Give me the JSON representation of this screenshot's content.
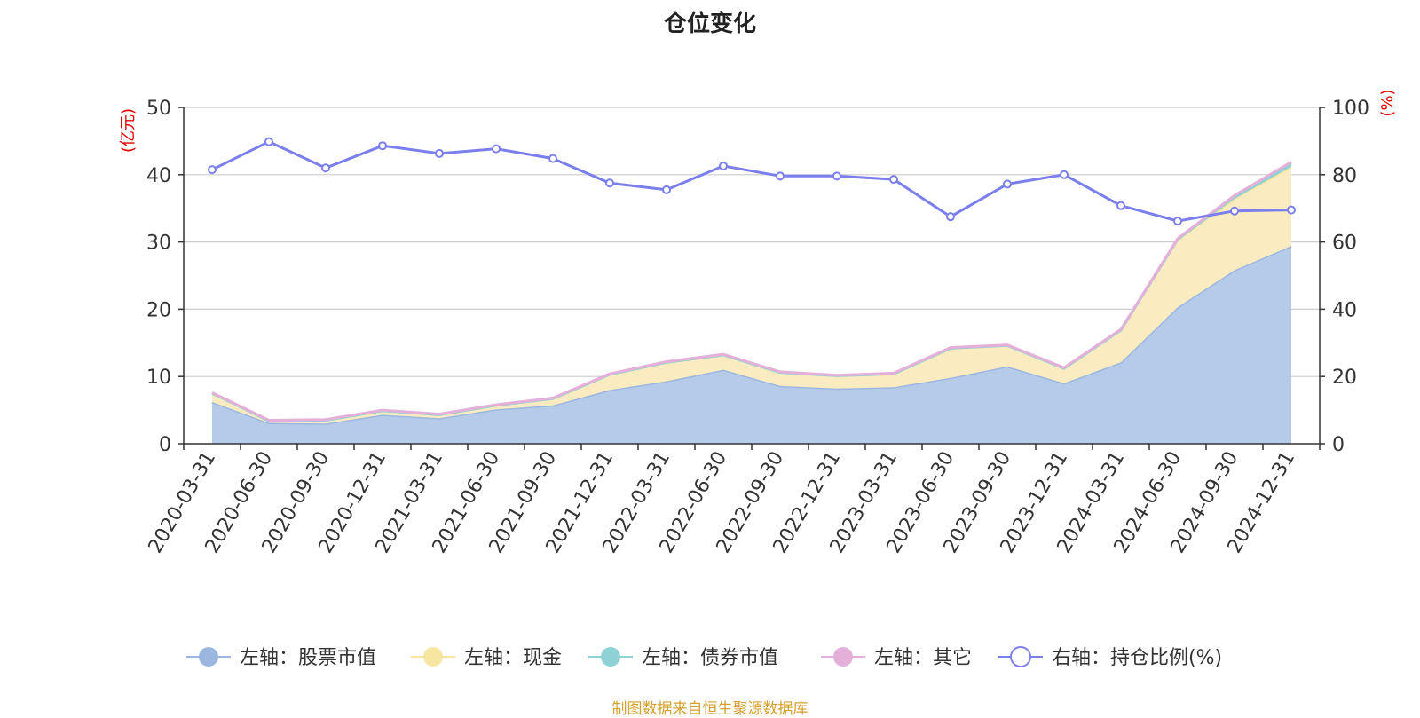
{
  "chart_data": {
    "type": "area",
    "title": "仓位变化",
    "source_note": "制图数据来自恒生聚源数据库",
    "y_left": {
      "unit_label": "(亿元)",
      "ylim": [
        0,
        50
      ],
      "ticks": [
        0,
        10,
        20,
        30,
        40,
        50
      ]
    },
    "y_right": {
      "unit_label": "(%)",
      "ylim": [
        0,
        100
      ],
      "ticks": [
        0,
        20,
        40,
        60,
        80,
        100
      ]
    },
    "x": [
      "2020-03-31",
      "2020-06-30",
      "2020-09-30",
      "2020-12-31",
      "2021-03-31",
      "2021-06-30",
      "2021-09-30",
      "2021-12-31",
      "2022-03-31",
      "2022-06-30",
      "2022-09-30",
      "2022-12-31",
      "2023-03-31",
      "2023-06-30",
      "2023-09-30",
      "2023-12-31",
      "2024-03-31",
      "2024-06-30",
      "2024-09-30",
      "2024-12-31"
    ],
    "grid": true,
    "legend_position": "bottom",
    "series": [
      {
        "name": "左轴：股票市值",
        "axis": "left",
        "color": "#9bb7e0",
        "fill": "#b6cbea",
        "values": [
          6.2,
          3.1,
          3.0,
          4.3,
          3.8,
          5.1,
          5.7,
          8.0,
          9.3,
          11.0,
          8.6,
          8.2,
          8.4,
          9.8,
          11.5,
          9.0,
          12.1,
          20.3,
          25.8,
          29.4
        ]
      },
      {
        "name": "左轴：现金",
        "axis": "left",
        "color": "#f7e6a2",
        "fill": "#faecc0",
        "values": [
          1.3,
          0.3,
          0.5,
          0.6,
          0.5,
          0.6,
          1.0,
          2.3,
          2.8,
          2.2,
          2.0,
          1.9,
          2.0,
          4.4,
          3.1,
          2.2,
          4.8,
          10.1,
          10.6,
          11.8
        ]
      },
      {
        "name": "左轴：债券市值",
        "axis": "left",
        "color": "#8fd1d4",
        "fill": "#8fd1d4",
        "values": [
          0,
          0,
          0,
          0,
          0,
          0,
          0,
          0,
          0,
          0,
          0,
          0,
          0,
          0,
          0,
          0,
          0,
          0,
          0.3,
          0.5
        ]
      },
      {
        "name": "左轴：其它",
        "axis": "left",
        "color": "#e4b0da",
        "fill": "#e4b0da",
        "values": [
          0.1,
          0.1,
          0.1,
          0.1,
          0.1,
          0.1,
          0.1,
          0.1,
          0.1,
          0.1,
          0.1,
          0.1,
          0.1,
          0.1,
          0.1,
          0.1,
          0.1,
          0.1,
          0.2,
          0.2
        ]
      },
      {
        "name": "右轴：持仓比例(%)",
        "axis": "right",
        "color": "#7b7fed",
        "values": [
          81.5,
          89.8,
          82.0,
          88.6,
          86.3,
          87.7,
          84.8,
          77.5,
          75.5,
          82.6,
          79.6,
          79.6,
          78.6,
          67.5,
          77.2,
          80.0,
          70.8,
          66.2,
          69.2,
          69.5
        ]
      }
    ]
  }
}
